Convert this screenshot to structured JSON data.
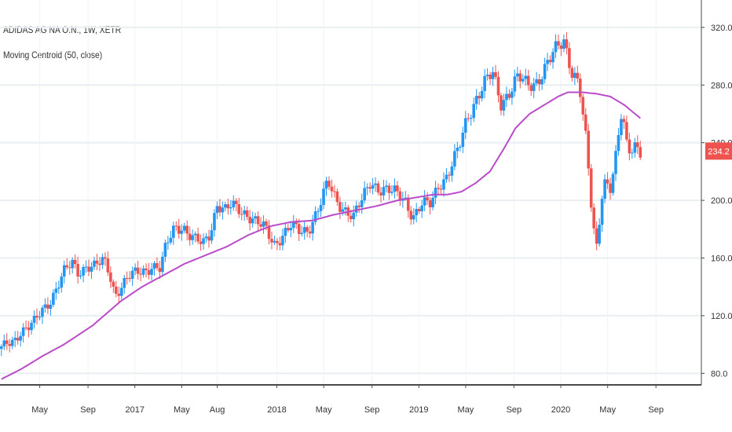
{
  "legend": {
    "title": "ADIDAS AG NA O.N., 1W, XETR",
    "indicator": "Moving Centroid (50, close)"
  },
  "colors": {
    "up": "#2196F3",
    "down": "#EF5350",
    "indicator": "#BA4BC9",
    "grid": "#E8EEF2",
    "axis": "#4A4A4A",
    "badge": "#EF5350"
  },
  "chart_data": {
    "type": "candlestick",
    "title": "ADIDAS AG NA O.N., 1W, XETR",
    "indicator_name": "Moving Centroid (50, close)",
    "ylim": [
      72,
      339
    ],
    "xlim": [
      2016.05,
      2020.99
    ],
    "y_ticks": [
      80,
      120,
      160,
      200,
      240,
      280,
      320
    ],
    "y_tick_labels": [
      "80.0",
      "120.0",
      "160.0",
      "200.0",
      "240.0",
      "280.0",
      "320.0"
    ],
    "x_ticks": [
      {
        "t": 2016.33,
        "label": "May"
      },
      {
        "t": 2016.67,
        "label": "Sep"
      },
      {
        "t": 2017.0,
        "label": "2017"
      },
      {
        "t": 2017.33,
        "label": "May"
      },
      {
        "t": 2017.58,
        "label": "Aug"
      },
      {
        "t": 2018.0,
        "label": "2018"
      },
      {
        "t": 2018.33,
        "label": "May"
      },
      {
        "t": 2018.67,
        "label": "Sep"
      },
      {
        "t": 2019.0,
        "label": "2019"
      },
      {
        "t": 2019.33,
        "label": "May"
      },
      {
        "t": 2019.67,
        "label": "Sep"
      },
      {
        "t": 2020.0,
        "label": "2020"
      },
      {
        "t": 2020.33,
        "label": "May"
      },
      {
        "t": 2020.67,
        "label": "Sep"
      }
    ],
    "last_price": "234.2",
    "close_anchors": [
      [
        2016.06,
        97
      ],
      [
        2016.1,
        100
      ],
      [
        2016.15,
        103
      ],
      [
        2016.2,
        110
      ],
      [
        2016.25,
        112
      ],
      [
        2016.3,
        116
      ],
      [
        2016.35,
        124
      ],
      [
        2016.4,
        130
      ],
      [
        2016.45,
        140
      ],
      [
        2016.5,
        150
      ],
      [
        2016.56,
        156
      ],
      [
        2016.6,
        150
      ],
      [
        2016.66,
        155
      ],
      [
        2016.72,
        154
      ],
      [
        2016.78,
        158
      ],
      [
        2016.82,
        150
      ],
      [
        2016.86,
        135
      ],
      [
        2016.9,
        140
      ],
      [
        2016.95,
        146
      ],
      [
        2017.02,
        150
      ],
      [
        2017.08,
        152
      ],
      [
        2017.12,
        155
      ],
      [
        2017.18,
        152
      ],
      [
        2017.22,
        168
      ],
      [
        2017.28,
        182
      ],
      [
        2017.34,
        182
      ],
      [
        2017.38,
        176
      ],
      [
        2017.42,
        172
      ],
      [
        2017.48,
        170
      ],
      [
        2017.53,
        178
      ],
      [
        2017.58,
        198
      ],
      [
        2017.63,
        192
      ],
      [
        2017.68,
        196
      ],
      [
        2017.74,
        194
      ],
      [
        2017.8,
        190
      ],
      [
        2017.86,
        184
      ],
      [
        2017.92,
        180
      ],
      [
        2017.98,
        170
      ],
      [
        2018.04,
        176
      ],
      [
        2018.1,
        182
      ],
      [
        2018.16,
        178
      ],
      [
        2018.22,
        180
      ],
      [
        2018.3,
        196
      ],
      [
        2018.36,
        212
      ],
      [
        2018.42,
        200
      ],
      [
        2018.48,
        194
      ],
      [
        2018.54,
        188
      ],
      [
        2018.6,
        200
      ],
      [
        2018.66,
        214
      ],
      [
        2018.72,
        208
      ],
      [
        2018.78,
        206
      ],
      [
        2018.84,
        205
      ],
      [
        2018.9,
        202
      ],
      [
        2018.96,
        188
      ],
      [
        2019.02,
        196
      ],
      [
        2019.08,
        198
      ],
      [
        2019.14,
        212
      ],
      [
        2019.2,
        216
      ],
      [
        2019.28,
        235
      ],
      [
        2019.34,
        258
      ],
      [
        2019.4,
        270
      ],
      [
        2019.46,
        280
      ],
      [
        2019.52,
        288
      ],
      [
        2019.58,
        268
      ],
      [
        2019.64,
        276
      ],
      [
        2019.7,
        285
      ],
      [
        2019.76,
        280
      ],
      [
        2019.82,
        282
      ],
      [
        2019.88,
        290
      ],
      [
        2019.94,
        300
      ],
      [
        2020.02,
        312
      ],
      [
        2020.08,
        290
      ],
      [
        2020.13,
        280
      ],
      [
        2020.18,
        238
      ],
      [
        2020.22,
        190
      ],
      [
        2020.25,
        166
      ],
      [
        2020.3,
        215
      ],
      [
        2020.35,
        208
      ],
      [
        2020.39,
        230
      ],
      [
        2020.43,
        262
      ],
      [
        2020.47,
        235
      ],
      [
        2020.52,
        240
      ],
      [
        2020.56,
        234
      ]
    ],
    "indicator_anchors": [
      [
        2016.06,
        76
      ],
      [
        2016.2,
        83
      ],
      [
        2016.35,
        92
      ],
      [
        2016.5,
        100
      ],
      [
        2016.7,
        113
      ],
      [
        2016.9,
        130
      ],
      [
        2017.05,
        140
      ],
      [
        2017.2,
        148
      ],
      [
        2017.35,
        156
      ],
      [
        2017.5,
        162
      ],
      [
        2017.65,
        168
      ],
      [
        2017.8,
        176
      ],
      [
        2017.95,
        182
      ],
      [
        2018.1,
        185
      ],
      [
        2018.25,
        186
      ],
      [
        2018.4,
        190
      ],
      [
        2018.55,
        193
      ],
      [
        2018.7,
        196
      ],
      [
        2018.85,
        200
      ],
      [
        2018.98,
        202
      ],
      [
        2019.1,
        204
      ],
      [
        2019.2,
        204
      ],
      [
        2019.3,
        206
      ],
      [
        2019.4,
        212
      ],
      [
        2019.5,
        220
      ],
      [
        2019.6,
        236
      ],
      [
        2019.68,
        250
      ],
      [
        2019.78,
        260
      ],
      [
        2019.88,
        266
      ],
      [
        2019.98,
        272
      ],
      [
        2020.05,
        275
      ],
      [
        2020.15,
        275
      ],
      [
        2020.25,
        274
      ],
      [
        2020.35,
        272
      ],
      [
        2020.45,
        266
      ],
      [
        2020.56,
        257
      ]
    ]
  }
}
